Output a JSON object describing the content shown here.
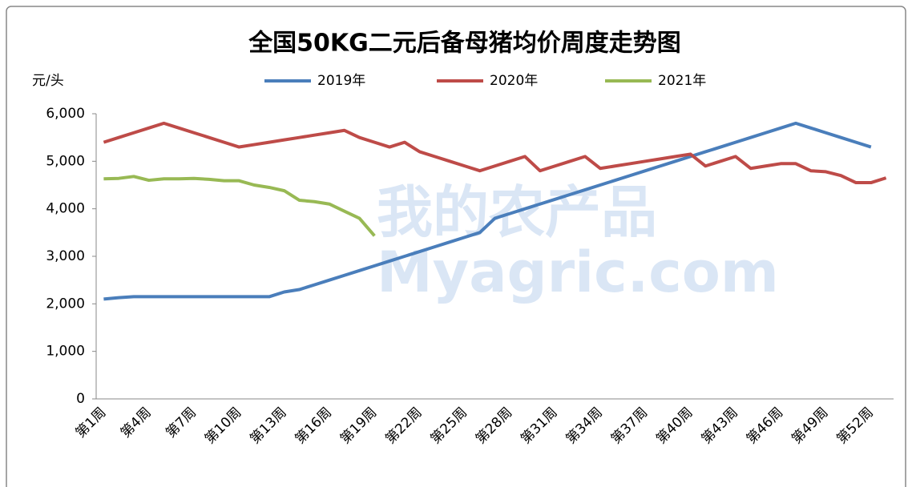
{
  "chart_data": {
    "type": "line",
    "title": "全国50KG二元后备母猪均价周度走势图",
    "y_label": "元/头",
    "annotations": [
      "我的农产品",
      "Myagric.com"
    ],
    "categories": [
      "第1周",
      null,
      null,
      "第4周",
      null,
      null,
      "第7周",
      null,
      null,
      "第10周",
      null,
      null,
      "第13周",
      null,
      null,
      "第16周",
      null,
      null,
      "第19周",
      null,
      null,
      "第22周",
      null,
      null,
      "第25周",
      null,
      null,
      "第28周",
      null,
      null,
      "第31周",
      null,
      null,
      "第34周",
      null,
      null,
      "第37周",
      null,
      null,
      "第40周",
      null,
      null,
      "第43周",
      null,
      null,
      "第46周",
      null,
      null,
      "第49周",
      null,
      null,
      "第52周",
      null
    ],
    "series": [
      {
        "name": "2019年",
        "color": "#4a7ebb",
        "values": [
          2100,
          2130,
          2150,
          2150,
          2150,
          2150,
          2150,
          2150,
          2150,
          2150,
          2150,
          2150,
          2250,
          2300,
          2400,
          2500,
          2600,
          2700,
          2800,
          2900,
          3000,
          3100,
          3200,
          3300,
          3400,
          3500,
          3800,
          3900,
          4000,
          4100,
          4200,
          4300,
          4400,
          4500,
          4600,
          4700,
          4800,
          4900,
          5000,
          5100,
          5200,
          5300,
          5400,
          5500,
          5600,
          5700,
          5800,
          5700,
          5600,
          5500,
          5400,
          5300,
          null
        ]
      },
      {
        "name": "2020年",
        "color": "#be4b48",
        "values": [
          5400,
          5500,
          5600,
          5700,
          5800,
          5700,
          5600,
          5500,
          5400,
          5300,
          5350,
          5400,
          5450,
          5500,
          5550,
          5600,
          5650,
          5500,
          5400,
          5300,
          5400,
          5200,
          5100,
          5000,
          4900,
          4800,
          4900,
          5000,
          5100,
          4800,
          4900,
          5000,
          5100,
          4850,
          4900,
          4950,
          5000,
          5050,
          5100,
          5150,
          4900,
          5000,
          5100,
          4850,
          4900,
          4950,
          4950,
          4800,
          4780,
          4700,
          4550,
          4550,
          4650
        ]
      },
      {
        "name": "2021年",
        "color": "#98b954",
        "values": [
          4630,
          4640,
          4680,
          4600,
          4630,
          4630,
          4640,
          4620,
          4590,
          4590,
          4500,
          4450,
          4380,
          4180,
          4150,
          4100,
          3950,
          3800,
          3430,
          null,
          null,
          null,
          null,
          null,
          null,
          null,
          null,
          null,
          null,
          null,
          null,
          null,
          null,
          null,
          null,
          null,
          null,
          null,
          null,
          null,
          null,
          null,
          null,
          null,
          null,
          null,
          null,
          null,
          null,
          null,
          null,
          null,
          null
        ]
      }
    ],
    "ylim": [
      0,
      6000
    ],
    "yticks": [
      0,
      {
        "value": 1000,
        "label": "1,000"
      },
      {
        "value": 2000,
        "label": "2,000"
      },
      {
        "value": 3000,
        "label": "3,000"
      },
      {
        "value": 4000,
        "label": "4,000"
      },
      {
        "value": 5000,
        "label": "5,000"
      },
      {
        "value": 6000,
        "label": "6,000"
      }
    ],
    "legend": "top"
  }
}
